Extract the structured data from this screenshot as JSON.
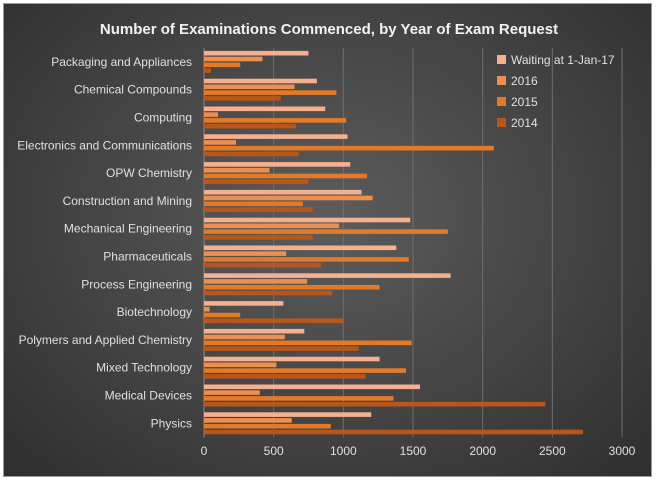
{
  "chart_data": {
    "type": "bar",
    "orientation": "horizontal",
    "title": "Number of Examinations Commenced, by Year of Exam Request",
    "categories": [
      "Packaging and Appliances",
      "Chemical Compounds",
      "Computing",
      "Electronics and Communications",
      "OPW Chemistry",
      "Construction and Mining",
      "Mechanical Engineering",
      "Pharmaceuticals",
      "Process Engineering",
      "Biotechnology",
      "Polymers and Applied Chemistry",
      "Mixed Technology",
      "Medical Devices",
      "Physics"
    ],
    "series": [
      {
        "name": "Waiting at 1-Jan-17",
        "color": "#f5b090",
        "values": [
          750,
          810,
          870,
          1030,
          1050,
          1130,
          1480,
          1380,
          1770,
          570,
          720,
          1260,
          1550,
          1200
        ]
      },
      {
        "name": "2016",
        "color": "#ee8f52",
        "values": [
          420,
          650,
          100,
          230,
          470,
          1210,
          970,
          590,
          740,
          40,
          580,
          520,
          400,
          630
        ]
      },
      {
        "name": "2015",
        "color": "#e47a26",
        "values": [
          260,
          950,
          1020,
          2080,
          1170,
          710,
          1750,
          1470,
          1260,
          260,
          1490,
          1450,
          1360,
          910
        ]
      },
      {
        "name": "2014",
        "color": "#b8561b",
        "values": [
          50,
          550,
          660,
          680,
          750,
          780,
          780,
          840,
          920,
          1000,
          1110,
          1160,
          2450,
          2720
        ]
      }
    ],
    "x_ticks": [
      "0",
      "500",
      "1000",
      "1500",
      "2000",
      "2500",
      "3000"
    ],
    "xlim": [
      0,
      3000
    ],
    "grid": true,
    "legend_position": "top-right"
  }
}
